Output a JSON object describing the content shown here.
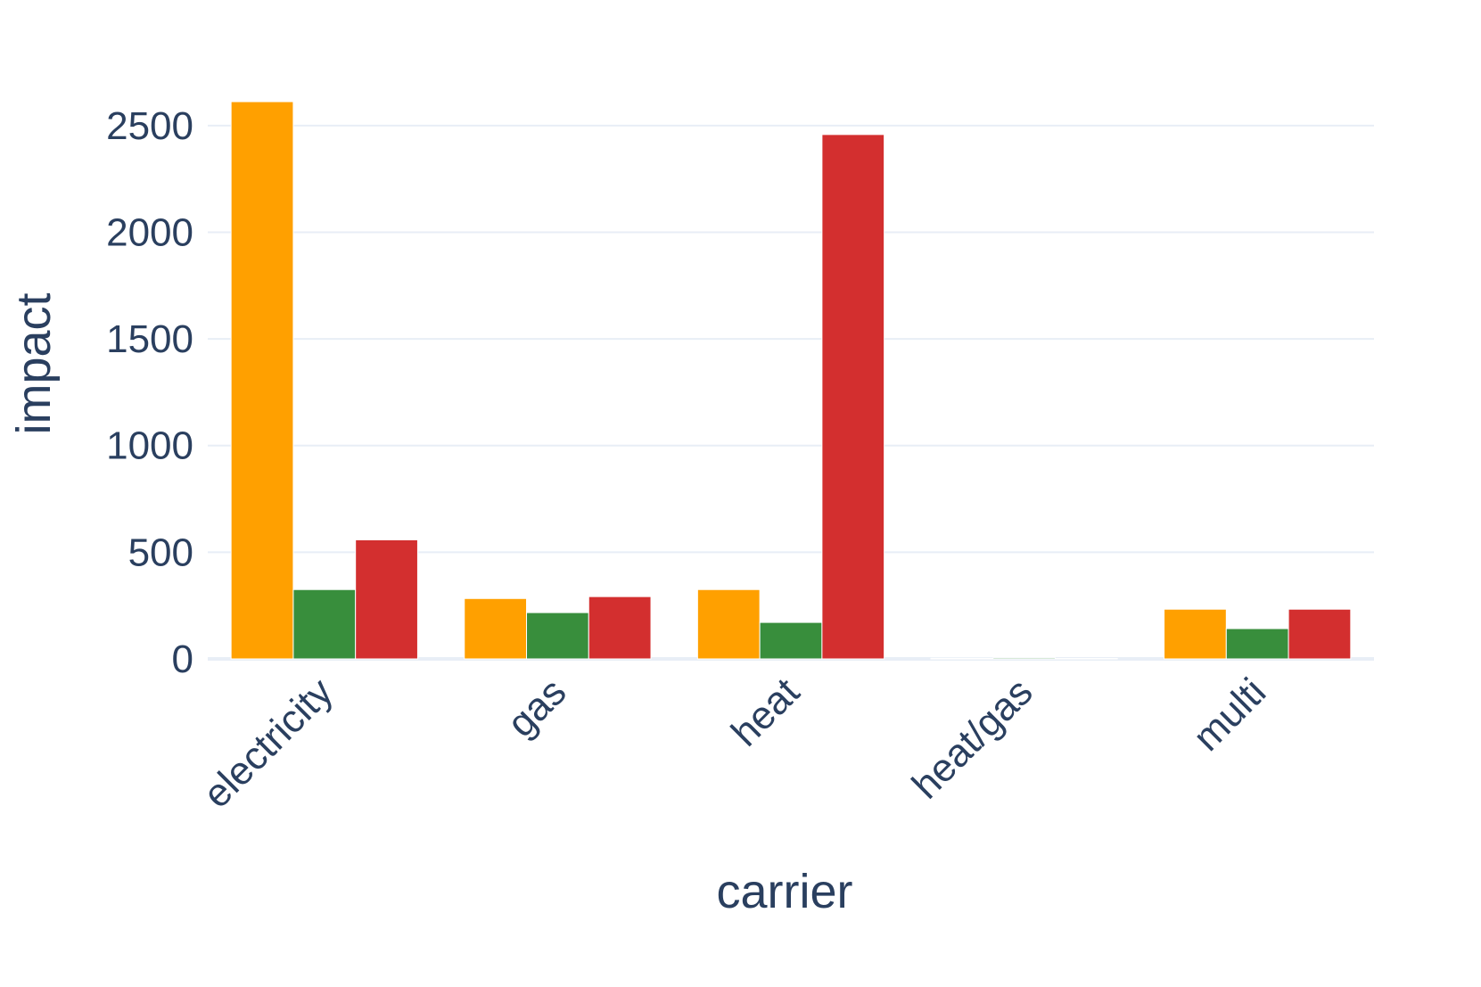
{
  "chart_data": {
    "type": "bar",
    "x_label": "carrier",
    "y_label": "impact",
    "categories": [
      "electricity",
      "gas",
      "heat",
      "heat/gas",
      "multi"
    ],
    "series": [
      {
        "color": "#ffa000",
        "values": [
          2612,
          283,
          325,
          3,
          233
        ]
      },
      {
        "color": "#388e3c",
        "values": [
          325,
          217,
          171,
          5,
          142
        ]
      },
      {
        "color": "#d32f2f",
        "values": [
          558,
          292,
          2458,
          2,
          233
        ]
      }
    ],
    "ylim": [
      0,
      2750
    ],
    "yticks": [
      0,
      500,
      1000,
      1500,
      2000,
      2500
    ],
    "grid": true
  }
}
